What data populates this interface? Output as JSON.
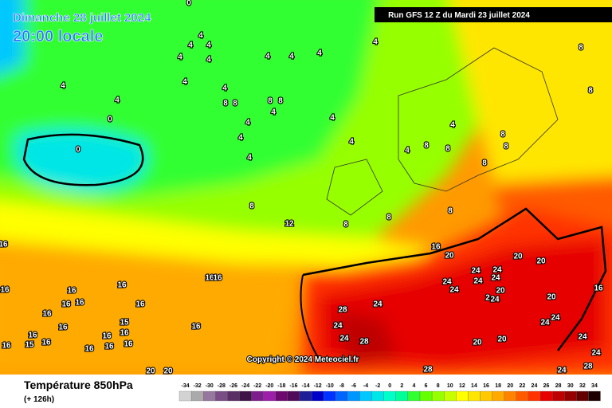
{
  "header": {
    "date": "Dimanche 28 juillet 2024",
    "time": "20:00 locale",
    "run": "Run GFS 12 Z du Mardi 23 juillet 2024",
    "copyright": "Copyright © 2024 Meteociel.fr"
  },
  "footer": {
    "title": "Température 850hPa",
    "lead": "(+ 126h)"
  },
  "scale": {
    "values": [
      -34,
      -32,
      -30,
      -28,
      -26,
      -24,
      -22,
      -20,
      -18,
      -16,
      -14,
      -12,
      -10,
      -8,
      -6,
      -4,
      -2,
      0,
      2,
      4,
      6,
      8,
      10,
      12,
      14,
      16,
      18,
      20,
      22,
      24,
      26,
      28,
      30,
      32,
      34
    ],
    "colors": [
      "#d2d2d2",
      "#aaaaaa",
      "#96789f",
      "#7a4e85",
      "#5c2e66",
      "#3e1448",
      "#7e1e8c",
      "#9c1eaa",
      "#6e0a6e",
      "#500a5a",
      "#1e1e96",
      "#0000c8",
      "#0032ff",
      "#0064ff",
      "#0096ff",
      "#00c8ff",
      "#00e6e6",
      "#00ffc8",
      "#00ff96",
      "#32ff32",
      "#64ff00",
      "#96ff00",
      "#c8ff00",
      "#ffff00",
      "#ffe600",
      "#ffc800",
      "#ffaa00",
      "#ff8200",
      "#ff5a00",
      "#ff3200",
      "#e60000",
      "#be0000",
      "#960000",
      "#640000",
      "#1e0000"
    ]
  },
  "map_labels": [
    "0",
    "4",
    "4",
    "4",
    "4",
    "4",
    "4",
    "4",
    "4",
    "4",
    "8",
    "4",
    "4",
    "4",
    "4",
    "8",
    "8",
    "8",
    "8",
    "4",
    "4",
    "4",
    "4",
    "8",
    "8",
    "0",
    "0",
    "4",
    "4",
    "4",
    "4",
    "8",
    "8",
    "8",
    "8",
    "8",
    "12",
    "8",
    "8",
    "8",
    "16",
    "20",
    "20",
    "20",
    "24",
    "24",
    "24",
    "24",
    "24",
    "24",
    "20",
    "20",
    "16",
    "2",
    "24",
    "28",
    "24",
    "24",
    "24",
    "28",
    "20",
    "20",
    "24",
    "24",
    "24",
    "24",
    "28",
    "24",
    "28",
    "16",
    "16",
    "16",
    "16",
    "16",
    "16",
    "16",
    "16",
    "16",
    "16",
    "16",
    "15",
    "16",
    "15",
    "16",
    "16",
    "16",
    "16",
    "16",
    "16",
    "16",
    "20",
    "20",
    "16"
  ]
}
